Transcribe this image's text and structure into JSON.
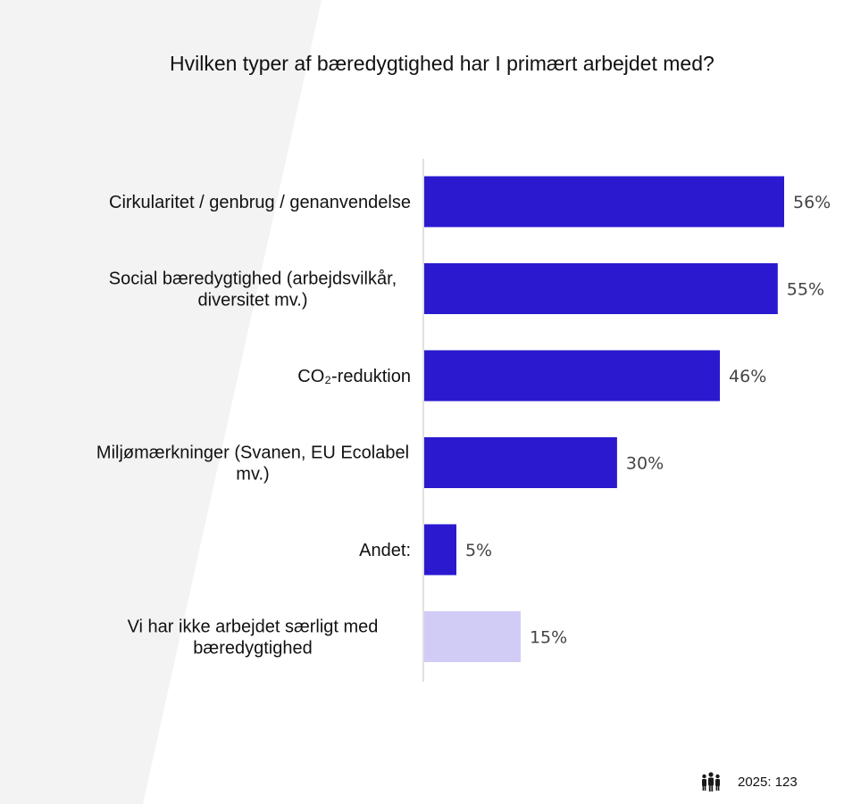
{
  "chart_data": {
    "type": "bar",
    "orientation": "horizontal",
    "title": "Hvilken typer af bæredygtighed har I primært arbejdet med?",
    "categories": [
      [
        "Cirkularitet / genbrug / genanvendelse"
      ],
      [
        "Social bæredygtighed (arbejdsvilkår,",
        "diversitet mv.)"
      ],
      [
        "CO₂-reduktion"
      ],
      [
        "Miljømærkninger (Svanen, EU Ecolabel",
        "mv.)"
      ],
      [
        "Andet:"
      ],
      [
        "Vi har ikke arbejdet særligt med",
        "bæredygtighed"
      ]
    ],
    "values": [
      56,
      55,
      46,
      30,
      5,
      15
    ],
    "value_labels": [
      "56%",
      "55%",
      "46%",
      "30%",
      "5%",
      "15%"
    ],
    "bar_colors": [
      "#2a19cf",
      "#2a19cf",
      "#2a19cf",
      "#2a19cf",
      "#2a19cf",
      "#d0ccf5"
    ],
    "xlim": [
      0,
      100
    ],
    "grid": false,
    "legend": "none"
  },
  "footer": {
    "icon": "people-icon",
    "text": "2025: 123"
  }
}
